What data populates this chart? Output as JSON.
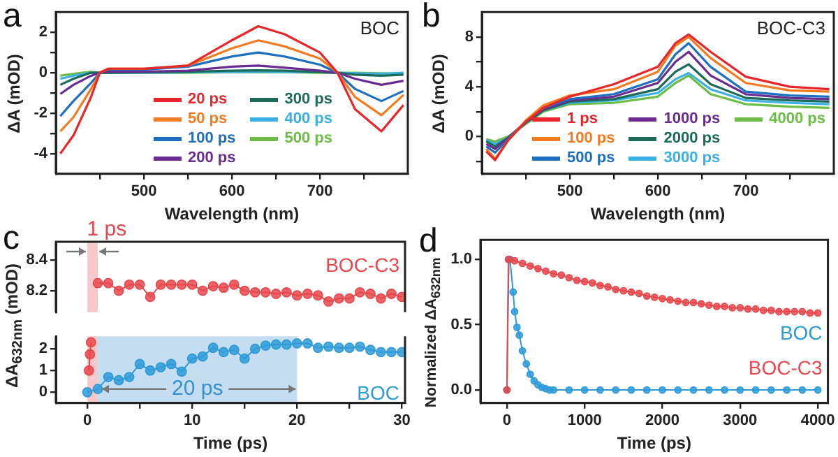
{
  "chart_data": [
    {
      "type": "line",
      "title": "a",
      "xlabel": "Wavelength (nm)",
      "ylabel": "ΔA (mOD)",
      "annotations": [
        "BOC"
      ],
      "marker": "none",
      "legend": "bottom",
      "xlim": [
        400,
        800
      ],
      "xticks": [
        {
          "value": 450,
          "label": null
        },
        500,
        {
          "value": 550,
          "label": null
        },
        600,
        {
          "value": 650,
          "label": null
        },
        700,
        {
          "value": 750,
          "label": null
        }
      ],
      "ylim": [
        -5,
        3
      ],
      "yticks": [
        -4,
        {
          "value": -3,
          "label": null
        },
        -2,
        {
          "value": -1,
          "label": null
        },
        0,
        {
          "value": 1,
          "label": null
        },
        2
      ],
      "x": [
        405,
        420,
        440,
        450,
        460,
        500,
        550,
        600,
        630,
        660,
        700,
        720,
        740,
        770,
        795
      ],
      "series": [
        {
          "name": "20 ps",
          "color": "#e8262a",
          "values": [
            -4.0,
            -3.1,
            -1.2,
            0,
            0.2,
            0.2,
            0.35,
            1.6,
            2.3,
            1.9,
            1.0,
            0,
            -1.8,
            -2.9,
            -1.6
          ]
        },
        {
          "name": "50 ps",
          "color": "#f47a20",
          "values": [
            -2.9,
            -2.2,
            -0.8,
            0,
            0.2,
            0.2,
            0.35,
            1.2,
            1.6,
            1.3,
            0.7,
            0,
            -1.2,
            -2.1,
            -1.1
          ]
        },
        {
          "name": "100 ps",
          "color": "#1f6fc0",
          "values": [
            -2.15,
            -1.4,
            -0.5,
            0,
            0.15,
            0.15,
            0.3,
            0.8,
            1.0,
            0.8,
            0.4,
            0,
            -0.8,
            -1.4,
            -0.9
          ]
        },
        {
          "name": "200 ps",
          "color": "#6a2c91",
          "values": [
            -1.05,
            -0.6,
            -0.15,
            0,
            0.05,
            0.05,
            0.1,
            0.3,
            0.35,
            0.25,
            0.1,
            0,
            -0.3,
            -0.6,
            -0.4
          ]
        },
        {
          "name": "300 ps",
          "color": "#1b6b58",
          "values": [
            -0.6,
            -0.3,
            0,
            0,
            0,
            0.02,
            0.05,
            0.1,
            0.12,
            0.1,
            0.03,
            0,
            -0.1,
            -0.15,
            -0.1
          ]
        },
        {
          "name": "400 ps",
          "color": "#3bb0e6",
          "values": [
            -0.3,
            -0.15,
            0,
            0,
            0,
            0,
            0.02,
            0.04,
            0.05,
            0.04,
            0.02,
            0,
            -0.03,
            -0.05,
            0
          ]
        },
        {
          "name": "500 ps",
          "color": "#6bbd45",
          "values": [
            -0.15,
            -0.05,
            0.05,
            0,
            0,
            0,
            0,
            0.02,
            0.02,
            0.02,
            0,
            0,
            0,
            -0.03,
            -0.05
          ]
        }
      ]
    },
    {
      "type": "line",
      "title": "b",
      "xlabel": "Wavelength (nm)",
      "ylabel": "ΔA (mOD)",
      "annotations": [
        "BOC-C3"
      ],
      "marker": "none",
      "legend": "bottom right",
      "xlim": [
        400,
        800
      ],
      "xticks": [
        {
          "value": 450,
          "label": null
        },
        500,
        {
          "value": 550,
          "label": null
        },
        600,
        {
          "value": 650,
          "label": null
        },
        700,
        {
          "value": 750,
          "label": null
        }
      ],
      "ylim": [
        -3,
        10
      ],
      "yticks": [
        {
          "value": -2,
          "label": null
        },
        0,
        {
          "value": 2,
          "label": null
        },
        4,
        {
          "value": 6,
          "label": null
        },
        8
      ],
      "x": [
        405,
        415,
        430,
        450,
        470,
        500,
        550,
        600,
        620,
        635,
        660,
        700,
        750,
        795
      ],
      "series": [
        {
          "name": "1 ps",
          "color": "#e8262a",
          "values": [
            -1.2,
            -1.9,
            -0.3,
            1.2,
            2.3,
            3.2,
            4.2,
            5.6,
            7.5,
            8.2,
            6.8,
            4.8,
            4.0,
            3.8
          ]
        },
        {
          "name": "100 ps",
          "color": "#f47a20",
          "values": [
            -1.0,
            -1.8,
            -0.3,
            1.3,
            2.5,
            3.3,
            3.8,
            5.2,
            7.3,
            8.0,
            6.3,
            4.3,
            3.7,
            3.6
          ]
        },
        {
          "name": "500 ps",
          "color": "#1f6fc0",
          "values": [
            -0.8,
            -1.3,
            -0.2,
            1.2,
            2.3,
            3.0,
            3.4,
            4.6,
            6.6,
            7.5,
            5.6,
            3.6,
            3.3,
            3.2
          ]
        },
        {
          "name": "1000 ps",
          "color": "#6a2c91",
          "values": [
            -0.6,
            -1.0,
            -0.1,
            1.2,
            2.2,
            2.9,
            3.2,
            4.3,
            6.0,
            6.8,
            4.9,
            3.4,
            3.1,
            3.0
          ]
        },
        {
          "name": "2000 ps",
          "color": "#1b6b58",
          "values": [
            -0.4,
            -0.8,
            -0.1,
            1.1,
            2.1,
            2.8,
            3.0,
            3.8,
            5.2,
            5.8,
            4.2,
            3.1,
            2.9,
            2.8
          ]
        },
        {
          "name": "3000 ps",
          "color": "#3bb0e6",
          "values": [
            -0.3,
            -0.6,
            -0.1,
            1.1,
            2.1,
            2.7,
            2.9,
            3.5,
            4.6,
            5.1,
            3.8,
            2.9,
            2.7,
            2.6
          ]
        },
        {
          "name": "4000 ps",
          "color": "#6bbd45",
          "values": [
            -0.2,
            -0.4,
            0,
            1.0,
            2.0,
            2.6,
            2.7,
            3.2,
            4.3,
            4.9,
            3.4,
            2.6,
            2.4,
            2.3
          ]
        }
      ]
    },
    {
      "type": "line",
      "title": "c",
      "marker": "circle",
      "tick_labels": "y",
      "xlim": [
        -3,
        30.3
      ],
      "ylim": [
        8.06,
        8.52
      ],
      "yticks": [
        {
          "value": 8.2,
          "label": "8.2"
        },
        {
          "value": 8.4,
          "label": "8.4"
        }
      ],
      "bands": [
        {
          "axis": "x",
          "from": 0,
          "to": 1,
          "label": "1 ps",
          "color": "#e8474c"
        }
      ],
      "series": [
        {
          "name": "BOC-C3",
          "color": "#e8474c",
          "x": [
            1,
            2,
            3,
            4,
            5,
            6,
            7,
            8,
            9,
            10,
            11,
            12,
            13,
            14,
            15,
            16,
            17,
            18,
            19,
            20,
            21,
            22,
            23,
            24,
            25,
            26,
            27,
            28,
            29,
            30
          ],
          "values": [
            8.25,
            8.25,
            8.2,
            8.24,
            8.24,
            8.16,
            8.24,
            8.24,
            8.24,
            8.24,
            8.2,
            8.23,
            8.22,
            8.24,
            8.2,
            8.19,
            8.19,
            8.18,
            8.19,
            8.17,
            8.18,
            8.17,
            8.13,
            8.15,
            8.15,
            8.19,
            8.18,
            8.15,
            8.18,
            8.16
          ]
        }
      ]
    },
    {
      "type": "line",
      "xlabel": "Time (ps)",
      "ylabel": "ΔA$_{632nm}$ (mOD)",
      "marker": "circle",
      "xlim": [
        -3,
        30.3
      ],
      "xticks": [
        0,
        {
          "value": 5,
          "label": null
        },
        10,
        {
          "value": 15,
          "label": null
        },
        20,
        {
          "value": 25,
          "label": null
        },
        30
      ],
      "ylim": [
        -0.5,
        2.58
      ],
      "yticks": [
        0,
        1,
        2
      ],
      "bands": [
        {
          "axis": "x",
          "from": 0,
          "to": 1,
          "color": "#e8474c"
        },
        {
          "axis": "x",
          "from": 1,
          "to": 20,
          "label": "20 ps",
          "color": "#3a8fd0"
        }
      ],
      "series": [
        {
          "color": "#e8474c",
          "x": [
            0.15,
            0.25,
            0.35
          ],
          "values": [
            1.0,
            1.75,
            2.3
          ]
        },
        {
          "name": "BOC",
          "color": "#2e9ad8",
          "x": [
            0,
            1,
            2,
            3,
            4,
            5,
            6,
            7,
            8,
            9,
            10,
            11,
            12,
            13,
            14,
            15,
            16,
            17,
            18,
            19,
            20,
            21,
            22,
            23,
            24,
            25,
            26,
            27,
            28,
            29,
            30
          ],
          "values": [
            0,
            0.15,
            0.7,
            0.55,
            0.7,
            1.3,
            1.0,
            1.15,
            1.3,
            0.95,
            1.55,
            1.65,
            2.05,
            1.85,
            1.95,
            1.55,
            2.0,
            2.15,
            2.2,
            2.2,
            2.25,
            2.25,
            2.05,
            2.1,
            2.05,
            2.05,
            2.1,
            1.95,
            1.85,
            1.85,
            1.85
          ]
        }
      ]
    },
    {
      "type": "line",
      "title": "d",
      "xlabel": "Time (ps)",
      "ylabel": "Normalized ΔA$_{632nm}$",
      "marker": "circle",
      "xlim": [
        -340,
        4130
      ],
      "xticks": [
        0,
        1000,
        2000,
        3000,
        4000
      ],
      "ylim": [
        -0.1,
        1.15
      ],
      "yticks": [
        {
          "value": 0,
          "label": "0.0"
        },
        {
          "value": 0.5,
          "label": "0.5"
        },
        {
          "value": 1,
          "label": "1.0"
        }
      ],
      "series": [
        {
          "name": "BOC-C3",
          "color": "#e8474c",
          "x": [
            0,
            20,
            100,
            200,
            300,
            400,
            500,
            600,
            700,
            800,
            900,
            1000,
            1100,
            1200,
            1300,
            1400,
            1500,
            1600,
            1700,
            1800,
            1900,
            2000,
            2100,
            2200,
            2300,
            2400,
            2500,
            2600,
            2700,
            2800,
            2900,
            3000,
            3100,
            3200,
            3300,
            3400,
            3500,
            3600,
            3700,
            3800,
            3900,
            4000
          ],
          "values": [
            0,
            1.0,
            0.99,
            0.97,
            0.95,
            0.93,
            0.91,
            0.89,
            0.88,
            0.86,
            0.84,
            0.83,
            0.82,
            0.8,
            0.79,
            0.77,
            0.76,
            0.75,
            0.74,
            0.72,
            0.71,
            0.7,
            0.69,
            0.68,
            0.67,
            0.67,
            0.66,
            0.65,
            0.64,
            0.64,
            0.63,
            0.63,
            0.62,
            0.62,
            0.61,
            0.61,
            0.6,
            0.6,
            0.6,
            0.6,
            0.59,
            0.59
          ]
        },
        {
          "name": "BOC",
          "color": "#2e9ad8",
          "x": [
            0,
            25,
            40,
            80,
            100,
            130,
            160,
            200,
            250,
            300,
            350,
            400,
            450,
            500,
            550,
            600,
            800,
            1000,
            1200,
            1400,
            1600,
            1800,
            2000,
            2200,
            2400,
            2600,
            2800,
            3000,
            3200,
            3400,
            3600,
            3800,
            4000
          ],
          "values": [
            0,
            1.0,
            1.0,
            0.75,
            0.6,
            0.48,
            0.42,
            0.3,
            0.2,
            0.12,
            0.07,
            0.04,
            0.02,
            0.01,
            0,
            0,
            0,
            0,
            0,
            0,
            0,
            0,
            0,
            0,
            0,
            0,
            0,
            0,
            0,
            0,
            0,
            0,
            0
          ]
        }
      ]
    }
  ]
}
